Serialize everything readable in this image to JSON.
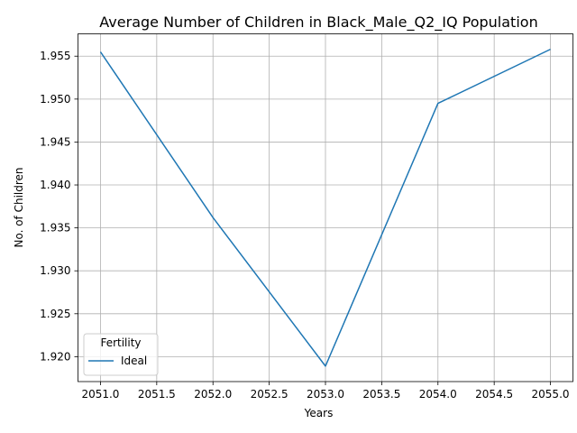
{
  "chart_data": {
    "type": "line",
    "title": "Average Number of Children in Black_Male_Q2_IQ Population",
    "xlabel": "Years",
    "ylabel": "No. of Children",
    "x": [
      2051,
      2052,
      2053,
      2054,
      2055
    ],
    "series": [
      {
        "name": "Ideal",
        "color": "#1f77b4",
        "values": [
          1.9555,
          1.9362,
          1.9189,
          1.9495,
          1.9558
        ]
      }
    ],
    "xlim": [
      2050.8,
      2055.2
    ],
    "ylim": [
      1.9171,
      1.9576
    ],
    "xticks": [
      "2051.0",
      "2051.5",
      "2052.0",
      "2052.5",
      "2053.0",
      "2053.5",
      "2054.0",
      "2054.5",
      "2055.0"
    ],
    "yticks": [
      "1.920",
      "1.925",
      "1.930",
      "1.935",
      "1.940",
      "1.945",
      "1.950",
      "1.955"
    ],
    "grid": true,
    "legend": {
      "title": "Fertility",
      "placement": "lower-left"
    }
  }
}
